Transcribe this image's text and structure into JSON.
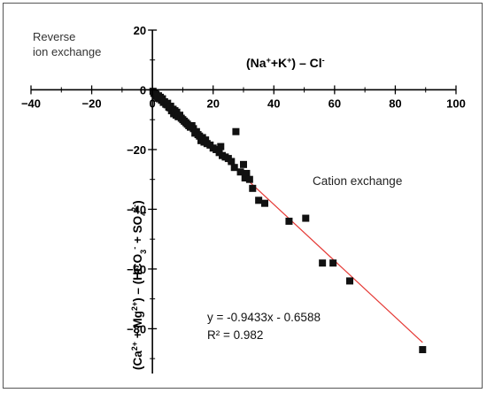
{
  "chart_data": {
    "type": "scatter",
    "title": "",
    "xlabel_parts": [
      "(Na",
      "+",
      "+K",
      "+",
      ") – Cl",
      "-"
    ],
    "ylabel_parts": [
      "(Ca",
      "2+",
      " + Mg",
      "2+",
      ") – (HCO",
      "3",
      "-",
      " + SO",
      "4",
      "2-",
      ")"
    ],
    "xlim": [
      -40,
      100
    ],
    "ylim": [
      -95,
      20
    ],
    "x_ticks": [
      -40,
      -20,
      0,
      20,
      40,
      60,
      80,
      100
    ],
    "y_ticks": [
      20,
      0,
      -20,
      -40,
      -60,
      -80
    ],
    "y_tick_labels": [
      "20",
      "0",
      "−20",
      "−40",
      "−60",
      "−80"
    ],
    "annotations": {
      "reverse_line1": "Reverse",
      "reverse_line2": "ion exchange",
      "cation_exchange": "Cation exchange"
    },
    "trendline": {
      "slope": -0.9433,
      "intercept": -0.6588,
      "x_range": [
        0,
        89
      ],
      "equation": "y = -0.9433x - 0.6588",
      "r2_label": "R² = 0.982",
      "color": "#e53935"
    },
    "marker_color": "#111111",
    "points": [
      [
        0.2,
        -0.5
      ],
      [
        0.5,
        -1.2
      ],
      [
        0.8,
        -1
      ],
      [
        1,
        -2
      ],
      [
        1.2,
        -1.5
      ],
      [
        1.5,
        -2.2
      ],
      [
        1.8,
        -2.8
      ],
      [
        2,
        -2
      ],
      [
        2.3,
        -3
      ],
      [
        2.6,
        -2.5
      ],
      [
        3,
        -3.5
      ],
      [
        3.3,
        -3
      ],
      [
        3.6,
        -4.2
      ],
      [
        4,
        -4
      ],
      [
        4.4,
        -4.8
      ],
      [
        4.8,
        -5
      ],
      [
        5,
        -4.5
      ],
      [
        5.4,
        -5.8
      ],
      [
        5.8,
        -6
      ],
      [
        6,
        -5.5
      ],
      [
        6.3,
        -7
      ],
      [
        6.8,
        -6.5
      ],
      [
        7,
        -8
      ],
      [
        7.4,
        -7
      ],
      [
        7.8,
        -8.5
      ],
      [
        8,
        -7.5
      ],
      [
        8.5,
        -9
      ],
      [
        9,
        -8.5
      ],
      [
        9.5,
        -9.5
      ],
      [
        10,
        -10
      ],
      [
        10.5,
        -10.5
      ],
      [
        11,
        -11
      ],
      [
        11.5,
        -11.5
      ],
      [
        12,
        -12
      ],
      [
        12.5,
        -12.5
      ],
      [
        13,
        -12
      ],
      [
        13.5,
        -13
      ],
      [
        14,
        -14.5
      ],
      [
        14.5,
        -14
      ],
      [
        15,
        -15
      ],
      [
        15.5,
        -15.5
      ],
      [
        16,
        -17
      ],
      [
        16.5,
        -16
      ],
      [
        17,
        -17.5
      ],
      [
        17.5,
        -16.8
      ],
      [
        18,
        -18
      ],
      [
        19,
        -18.5
      ],
      [
        20,
        -19.5
      ],
      [
        21,
        -20
      ],
      [
        22,
        -21
      ],
      [
        22.5,
        -19
      ],
      [
        23,
        -22
      ],
      [
        24,
        -22.5
      ],
      [
        25,
        -23
      ],
      [
        26,
        -24
      ],
      [
        27,
        -26
      ],
      [
        27.5,
        -14
      ],
      [
        29,
        -27.5
      ],
      [
        30,
        -25
      ],
      [
        30.5,
        -29.5
      ],
      [
        31,
        -28
      ],
      [
        32,
        -30
      ],
      [
        33,
        -33
      ],
      [
        35,
        -37
      ],
      [
        37,
        -38
      ],
      [
        45,
        -44
      ],
      [
        50.5,
        -43
      ],
      [
        56,
        -58
      ],
      [
        59.5,
        -58
      ],
      [
        65,
        -64
      ],
      [
        89,
        -87
      ]
    ]
  }
}
